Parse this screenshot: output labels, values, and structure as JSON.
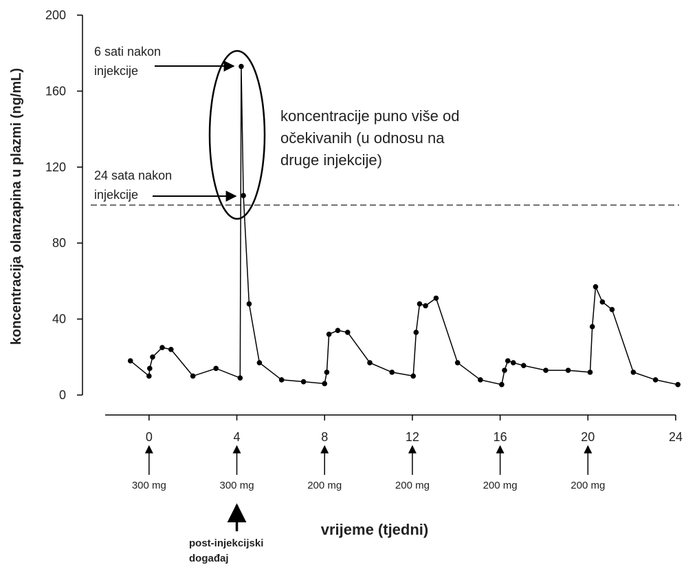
{
  "chart_data": {
    "type": "line",
    "y_label": "koncentracija olanzapina u plazmi (ng/mL)",
    "x_label": "vrijeme (tjedni)",
    "color": "#000000",
    "x": [
      -0.85,
      0,
      0.03,
      0.16,
      0.6,
      1.0,
      2.0,
      3.05,
      4.15,
      4.2,
      4.3,
      4.56,
      5.03,
      6.04,
      7.04,
      8.0,
      8.1,
      8.2,
      8.6,
      9.05,
      10.06,
      11.07,
      12.04,
      12.17,
      12.33,
      12.6,
      13.08,
      14.06,
      15.1,
      16.07,
      16.2,
      16.35,
      16.6,
      17.07,
      18.08,
      19.1,
      20.1,
      20.2,
      20.35,
      20.66,
      21.1,
      22.07,
      23.08,
      24.1
    ],
    "values": [
      18,
      10,
      14,
      20,
      25,
      24,
      10,
      14,
      9,
      173,
      105,
      48,
      17,
      8,
      7,
      6,
      12,
      32,
      34,
      33,
      17,
      12,
      10,
      33,
      48,
      47,
      51,
      17,
      8,
      5.5,
      13,
      18,
      17,
      15.5,
      13,
      13,
      12,
      36,
      57,
      49,
      45,
      12,
      8,
      5.5
    ],
    "xlim": [
      -2,
      24
    ],
    "ylim": [
      0,
      200
    ],
    "xticks": [
      0,
      4,
      8,
      12,
      16,
      20,
      24
    ],
    "yticks": [
      0,
      40,
      80,
      120,
      160,
      200
    ],
    "reference_line": 100,
    "annotations": [
      [
        "6 sati nakon",
        "injekcije"
      ],
      [
        "24 sata nakon",
        "injekcije"
      ],
      [
        "koncentracije puno više od",
        "očekivanih (u odnosu na",
        "druge injekcije)"
      ]
    ],
    "injections": [
      {
        "x": 0,
        "label": "300 mg"
      },
      {
        "x": 4,
        "label": "300 mg"
      },
      {
        "x": 8,
        "label": "200 mg"
      },
      {
        "x": 12,
        "label": "200 mg"
      },
      {
        "x": 16,
        "label": "200 mg"
      },
      {
        "x": 20,
        "label": "200 mg"
      }
    ],
    "event": {
      "x": 4,
      "label": [
        "post-injekcijski",
        "događaj"
      ]
    }
  }
}
